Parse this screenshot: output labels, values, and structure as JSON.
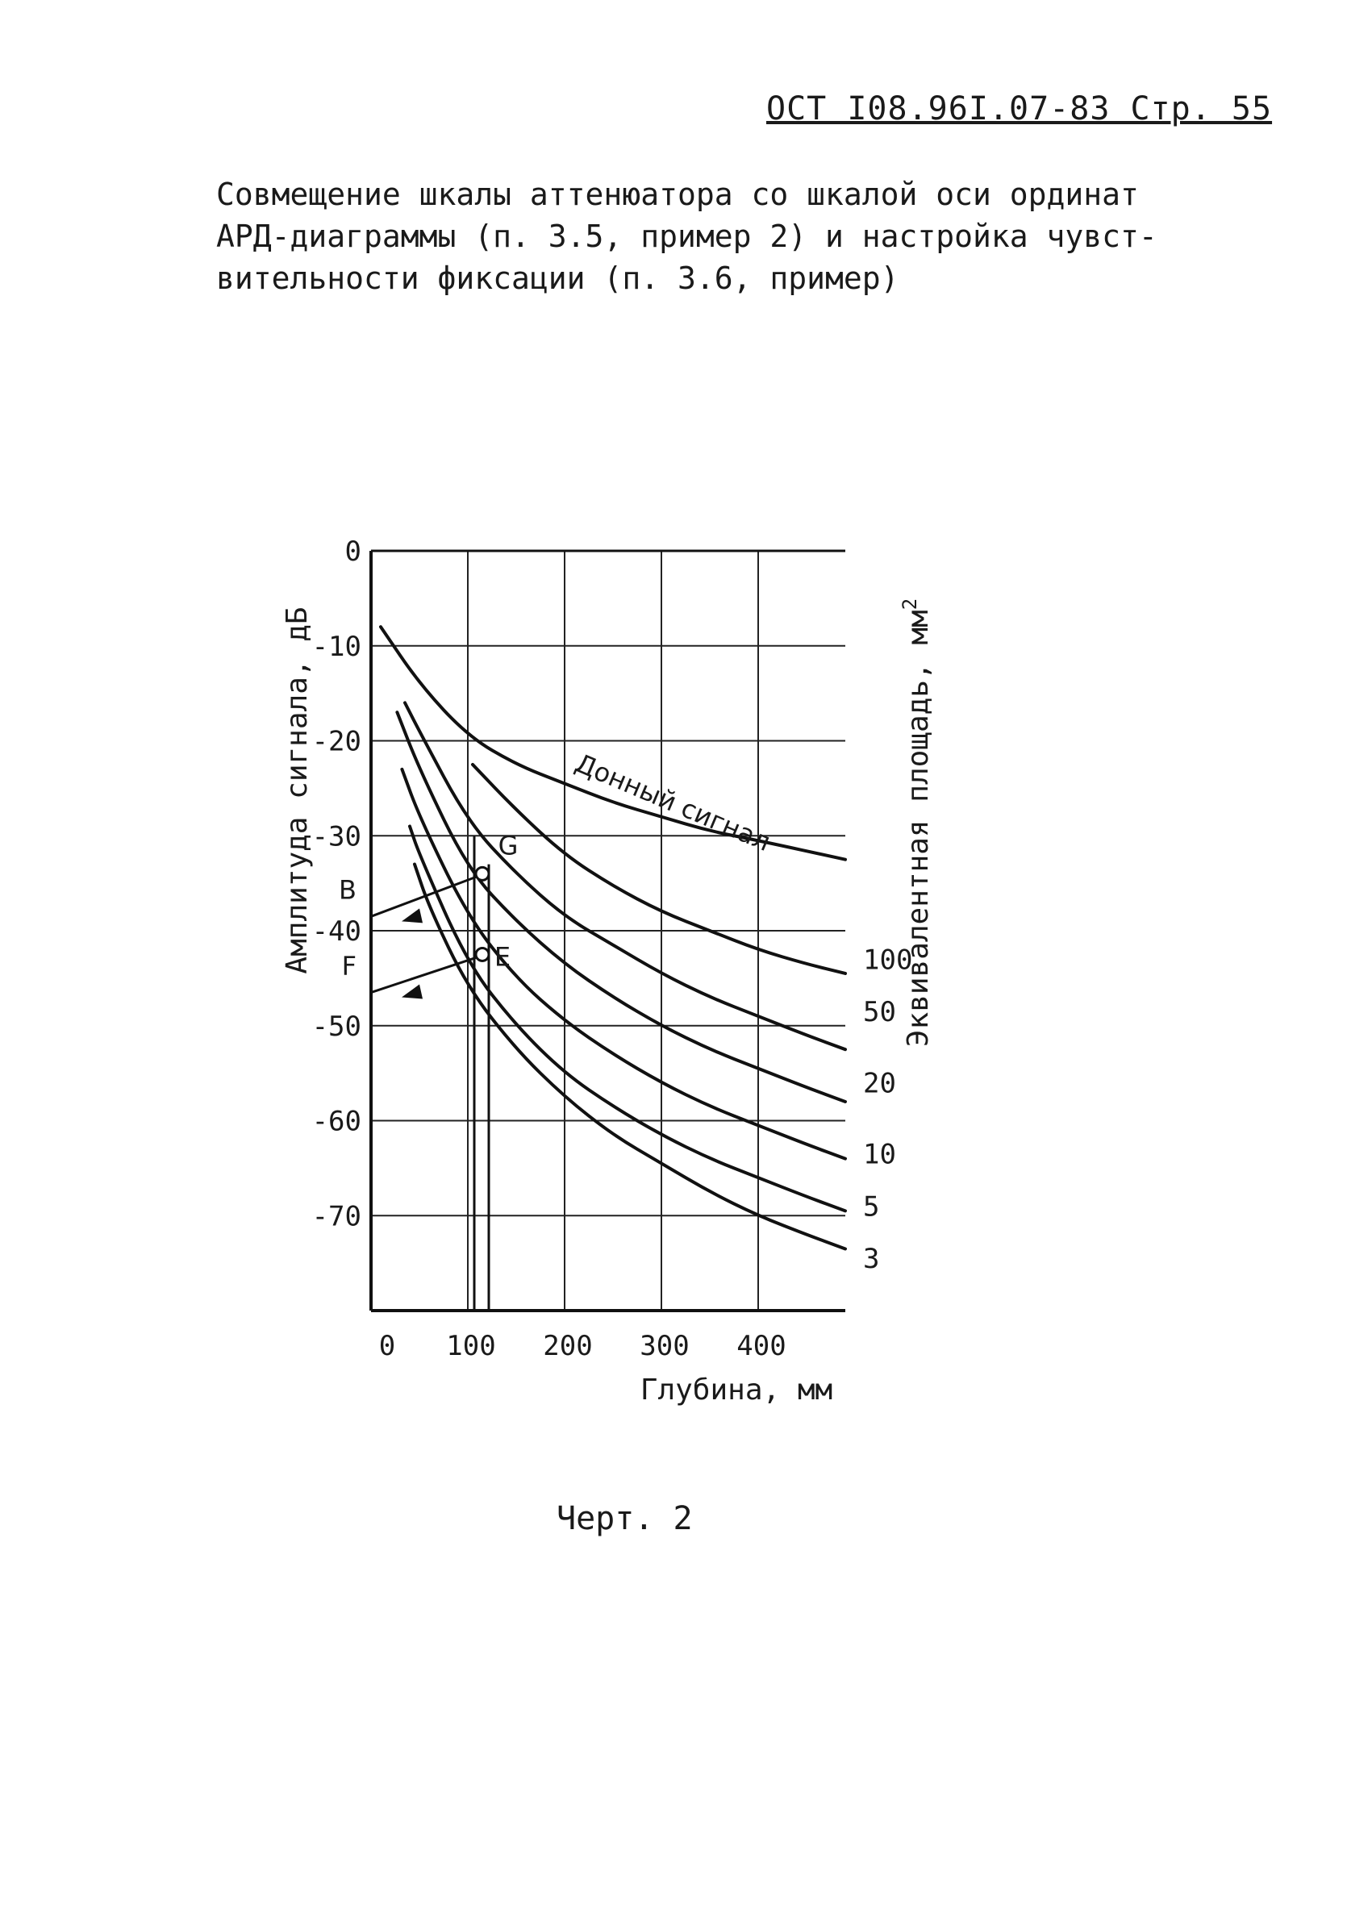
{
  "header": {
    "text": "ОСТ I08.96I.07-83  Стр. 55"
  },
  "caption": {
    "lines": [
      "Совмещение шкалы аттенюатора со шкалой оси ординат",
      "АРД-диаграммы (п. 3.5, пример 2) и настройка чувст-",
      "вительности фиксации (п. 3.6, пример)"
    ]
  },
  "figure_label": "Черт. 2",
  "chart_data": {
    "type": "line",
    "xlabel": "Глубина, мм",
    "ylabel": "Амплитуда сигнала, дБ",
    "y2label": "Эквивалентная площадь, мм",
    "y2label_sup": "2",
    "xlim": [
      0,
      490
    ],
    "ylim": [
      -80,
      0
    ],
    "x_ticks": [
      {
        "value": 0,
        "label": "0"
      },
      {
        "value": 100,
        "label": "100"
      },
      {
        "value": 200,
        "label": "200"
      },
      {
        "value": 300,
        "label": "300"
      },
      {
        "value": 400,
        "label": "400"
      }
    ],
    "y_ticks": [
      {
        "value": 0,
        "label": "0"
      },
      {
        "value": -10,
        "label": "-10"
      },
      {
        "value": -20,
        "label": "-20"
      },
      {
        "value": -30,
        "label": "-30"
      },
      {
        "value": -40,
        "label": "-40"
      },
      {
        "value": -50,
        "label": "-50"
      },
      {
        "value": -60,
        "label": "-60"
      },
      {
        "value": -70,
        "label": "-70"
      }
    ],
    "grid": true,
    "series": [
      {
        "name": "Донный сигнал",
        "x": [
          10,
          50,
          100,
          150,
          200,
          250,
          300,
          350,
          400,
          490
        ],
        "y": [
          -8,
          -14,
          -19.5,
          -22.5,
          -24.5,
          -26.5,
          -28,
          -29.5,
          -30.5,
          -32.5
        ]
      },
      {
        "name": "100",
        "x": [
          105,
          150,
          200,
          250,
          300,
          350,
          400,
          450,
          490
        ],
        "y": [
          -22.5,
          -27.3,
          -32,
          -35.3,
          -38,
          -40,
          -42,
          -43.5,
          -44.5
        ]
      },
      {
        "name": "50",
        "x": [
          35,
          50,
          100,
          150,
          200,
          250,
          300,
          350,
          400,
          450,
          490
        ],
        "y": [
          -16,
          -19,
          -28.5,
          -34,
          -38.5,
          -41.5,
          -44.5,
          -47,
          -49,
          -51,
          -52.5
        ]
      },
      {
        "name": "20",
        "x": [
          27,
          50,
          100,
          150,
          200,
          250,
          300,
          350,
          400,
          450,
          490
        ],
        "y": [
          -17,
          -23,
          -33.5,
          -39,
          -43.5,
          -47,
          -50,
          -52.5,
          -54.5,
          -56.5,
          -58
        ]
      },
      {
        "name": "10",
        "x": [
          32,
          50,
          100,
          150,
          200,
          250,
          300,
          350,
          400,
          450,
          490
        ],
        "y": [
          -23,
          -28,
          -38.5,
          -45,
          -49.5,
          -53,
          -56,
          -58.5,
          -60.5,
          -62.5,
          -64
        ]
      },
      {
        "name": "5",
        "x": [
          40,
          50,
          100,
          150,
          200,
          250,
          300,
          350,
          400,
          450,
          490
        ],
        "y": [
          -29,
          -32,
          -43.5,
          -50,
          -55,
          -58.5,
          -61.5,
          -64,
          -66,
          -68,
          -69.5
        ]
      },
      {
        "name": "3",
        "x": [
          45,
          60,
          100,
          150,
          200,
          250,
          300,
          350,
          400,
          450,
          490
        ],
        "y": [
          -33,
          -37.5,
          -46,
          -52.5,
          -57.5,
          -61.5,
          -64.5,
          -67.5,
          -70,
          -72,
          -73.5
        ]
      }
    ],
    "annotations": {
      "bottom_signal_label": "Донный сигнал",
      "points": [
        {
          "label": "G",
          "x": 115,
          "y": -34
        },
        {
          "label": "E",
          "x": 115,
          "y": -42.5
        }
      ],
      "scale_marks": [
        {
          "label": "B",
          "y": -38.5
        },
        {
          "label": "F",
          "y": -46.5
        }
      ],
      "vertical_lines_x": [
        115
      ],
      "right_labels": [
        {
          "label": "100",
          "y": -43
        },
        {
          "label": "50",
          "y": -48.5
        },
        {
          "label": "20",
          "y": -56
        },
        {
          "label": "10",
          "y": -63.5
        },
        {
          "label": "5",
          "y": -69
        },
        {
          "label": "3",
          "y": -74.5
        }
      ]
    }
  }
}
